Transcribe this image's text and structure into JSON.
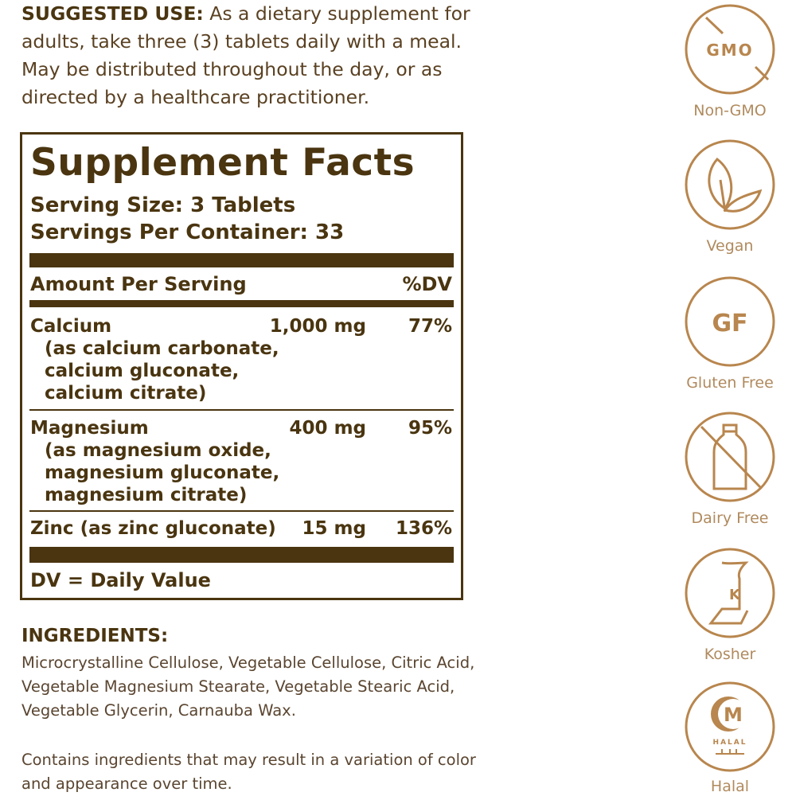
{
  "suggested_use": {
    "heading": "SUGGESTED USE:",
    "lines": [
      " As a dietary supplement for",
      "adults, take three (3) tablets daily with a meal.",
      "May be distributed throughout the day, or as",
      "directed by a healthcare practitioner."
    ]
  },
  "facts": {
    "title": "Supplement Facts",
    "serving_size": "Serving Size: 3 Tablets",
    "servings_per_container": "Servings Per Container: 33",
    "amount_header": "Amount Per Serving",
    "dv_header": "%DV",
    "rows": [
      {
        "name": "Calcium",
        "amount": "1,000 mg",
        "dv": "77%",
        "sub": [
          "(as calcium carbonate,",
          "calcium gluconate,",
          "calcium citrate)"
        ]
      },
      {
        "name": "Magnesium",
        "amount": "400 mg",
        "dv": "95%",
        "sub": [
          "(as magnesium oxide,",
          "magnesium gluconate,",
          "magnesium citrate)"
        ]
      },
      {
        "name": "Zinc (as zinc gluconate)",
        "amount": "15 mg",
        "dv": "136%"
      }
    ],
    "footnote": "DV = Daily Value"
  },
  "ingredients": {
    "heading": "INGREDIENTS:",
    "lines": [
      "Microcrystalline Cellulose, Vegetable Cellulose, Citric Acid,",
      "Vegetable Magnesium Stearate, Vegetable Stearic Acid,",
      "Vegetable Glycerin, Carnauba Wax."
    ]
  },
  "note": {
    "lines": [
      "Contains ingredients that may result in a variation of color",
      "and appearance over time."
    ]
  },
  "badges": [
    {
      "label": "Non-GMO",
      "icon": "no-gmo-icon",
      "text": "GMO"
    },
    {
      "label": "Vegan",
      "icon": "leaf-icon"
    },
    {
      "label": "Gluten Free",
      "icon": "gluten-free-icon",
      "text": "GF"
    },
    {
      "label": "Dairy Free",
      "icon": "no-milk-bottle-icon"
    },
    {
      "label": "Kosher",
      "icon": "kosher-icon",
      "text": "K"
    },
    {
      "label": "Halal",
      "icon": "halal-icon",
      "text": "M",
      "subtext": "HALAL"
    }
  ],
  "colors": {
    "text": "#4a3510",
    "badge": "#b8864e"
  }
}
